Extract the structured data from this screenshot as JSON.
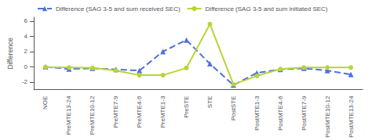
{
  "chart_data": {
    "type": "line",
    "categories": [
      "NOE",
      "PreMTE13-24",
      "PreMTE10-12",
      "PreMTE7-9",
      "PreMTE4-6",
      "PreMTE1-3",
      "PreSTE",
      "STE",
      "PostSTE",
      "PostMTE1-3",
      "PostMTE4-6",
      "PostMTE7-9",
      "PostMTE10-12",
      "PostMTE13-24"
    ],
    "series": [
      {
        "name": "Difference (SAG 3-5 and sum received SEC)",
        "values": [
          0.0,
          -0.3,
          -0.2,
          -0.35,
          -0.5,
          2.0,
          3.5,
          0.4,
          -2.4,
          -0.8,
          -0.35,
          -0.2,
          -0.5,
          -1.0
        ],
        "marker": "triangle",
        "line_style": "dashed"
      },
      {
        "name": "Difference (SAG 3-5 and sum initiated SEC)",
        "values": [
          -0.05,
          -0.1,
          -0.15,
          -0.5,
          -1.1,
          -1.1,
          -0.15,
          5.6,
          -2.3,
          -1.2,
          -0.3,
          -0.1,
          -0.1,
          -0.1
        ],
        "marker": "circle",
        "line_style": "solid"
      }
    ],
    "ylabel": "Difference",
    "ylim": [
      -3,
      6.5
    ],
    "yticks": [
      -2,
      0,
      2,
      4,
      6
    ],
    "grid": false,
    "legend": "upper left"
  }
}
